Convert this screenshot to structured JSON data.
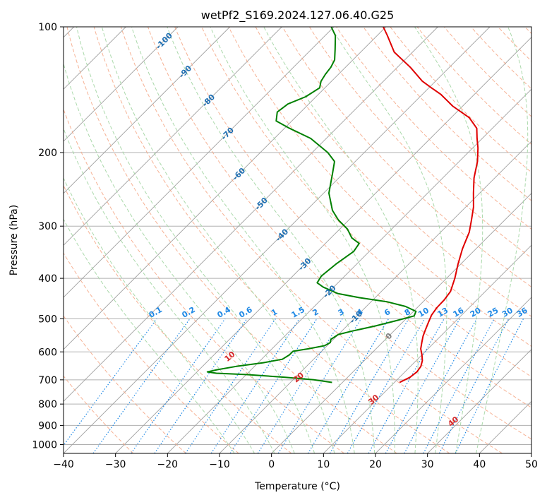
{
  "chart_data": {
    "type": "line",
    "subtype": "skew-t log-p diagram",
    "title": "wetPf2_S169.2024.127.06.40.G25",
    "xlabel": "Temperature (°C)",
    "ylabel": "Pressure (hPa)",
    "xlim": [
      -40,
      50
    ],
    "ylim": [
      1050,
      100
    ],
    "y_scale": "log",
    "grid": true,
    "x_ticks": [
      "−40",
      "−30",
      "−20",
      "−10",
      "0",
      "10",
      "20",
      "30",
      "40",
      "50"
    ],
    "y_ticks": [
      "100",
      "200",
      "300",
      "400",
      "500",
      "600",
      "700",
      "800",
      "900",
      "1000"
    ],
    "y_tick_values": [
      100,
      200,
      300,
      400,
      500,
      600,
      700,
      800,
      900,
      1000
    ],
    "colors": {
      "temperature": "#e00000",
      "dewpoint": "#008000",
      "isotherm": "#888888",
      "dry_adiabat": "#f4a582",
      "moist_adiabat": "#a6d7a6",
      "mixing_ratio": "#1e88e5",
      "isotherm_label": "#1f6fb2",
      "dry_adiabat_label": "#d62728"
    },
    "series": [
      {
        "name": "",
        "role": "temperature",
        "points": [
          [
            710,
            11.0
          ],
          [
            690,
            12.0
          ],
          [
            670,
            12.3
          ],
          [
            650,
            12.0
          ],
          [
            630,
            11.2
          ],
          [
            610,
            10.0
          ],
          [
            590,
            8.6
          ],
          [
            570,
            7.6
          ],
          [
            550,
            6.6
          ],
          [
            530,
            5.8
          ],
          [
            510,
            5.0
          ],
          [
            490,
            4.2
          ],
          [
            470,
            3.8
          ],
          [
            450,
            3.7
          ],
          [
            430,
            3.3
          ],
          [
            400,
            1.6
          ],
          [
            370,
            -0.5
          ],
          [
            340,
            -2.6
          ],
          [
            310,
            -4.5
          ],
          [
            290,
            -6.4
          ],
          [
            270,
            -8.5
          ],
          [
            250,
            -11.2
          ],
          [
            230,
            -14.0
          ],
          [
            210,
            -16.5
          ],
          [
            195,
            -19.0
          ],
          [
            185,
            -21.0
          ],
          [
            175,
            -23.0
          ],
          [
            165,
            -26.5
          ],
          [
            155,
            -31.8
          ],
          [
            145,
            -36.5
          ],
          [
            140,
            -39.5
          ],
          [
            135,
            -42.5
          ],
          [
            125,
            -47.5
          ],
          [
            115,
            -53.5
          ],
          [
            105,
            -58.0
          ],
          [
            100,
            -60.5
          ]
        ]
      },
      {
        "name": "",
        "role": "dewpoint",
        "points": [
          [
            710,
            -2.0
          ],
          [
            700,
            -6.0
          ],
          [
            690,
            -12.0
          ],
          [
            680,
            -20.0
          ],
          [
            675,
            -26.0
          ],
          [
            670,
            -28.0
          ],
          [
            662,
            -26.5
          ],
          [
            650,
            -23.5
          ],
          [
            637,
            -19.0
          ],
          [
            625,
            -16.0
          ],
          [
            610,
            -15.5
          ],
          [
            598,
            -15.5
          ],
          [
            590,
            -13.0
          ],
          [
            580,
            -10.5
          ],
          [
            570,
            -10.0
          ],
          [
            560,
            -10.5
          ],
          [
            545,
            -10.0
          ],
          [
            535,
            -8.0
          ],
          [
            520,
            -4.5
          ],
          [
            505,
            -1.5
          ],
          [
            492,
            1.0
          ],
          [
            480,
            0.5
          ],
          [
            467,
            -2.5
          ],
          [
            455,
            -7.0
          ],
          [
            445,
            -13.0
          ],
          [
            435,
            -18.0
          ],
          [
            420,
            -22.0
          ],
          [
            410,
            -24.0
          ],
          [
            395,
            -24.5
          ],
          [
            370,
            -24.0
          ],
          [
            345,
            -23.0
          ],
          [
            330,
            -23.5
          ],
          [
            320,
            -26.0
          ],
          [
            305,
            -28.5
          ],
          [
            290,
            -32.0
          ],
          [
            275,
            -35.0
          ],
          [
            250,
            -39.0
          ],
          [
            225,
            -42.0
          ],
          [
            210,
            -44.0
          ],
          [
            200,
            -47.0
          ],
          [
            185,
            -53.0
          ],
          [
            175,
            -59.0
          ],
          [
            168,
            -63.0
          ],
          [
            160,
            -64.5
          ],
          [
            153,
            -64.0
          ],
          [
            147,
            -62.0
          ],
          [
            140,
            -61.0
          ],
          [
            135,
            -62.0
          ],
          [
            130,
            -62.5
          ],
          [
            125,
            -62.8
          ],
          [
            120,
            -63.5
          ],
          [
            113,
            -65.5
          ],
          [
            105,
            -68.0
          ],
          [
            100,
            -70.5
          ]
        ]
      }
    ],
    "isotherm_labels": [
      "-100",
      "-90",
      "-80",
      "-70",
      "-60",
      "-50",
      "-40",
      "-30",
      "-20",
      "-10",
      "0"
    ],
    "dry_adiabat_labels": [
      "10",
      "20",
      "30",
      "40"
    ],
    "mixing_ratio_labels": [
      "0.1",
      "0.2",
      "0.4",
      "0.6",
      "1",
      "1.5",
      "2",
      "3",
      "4",
      "6",
      "8",
      "10",
      "13",
      "16",
      "20",
      "25",
      "30",
      "36"
    ]
  }
}
